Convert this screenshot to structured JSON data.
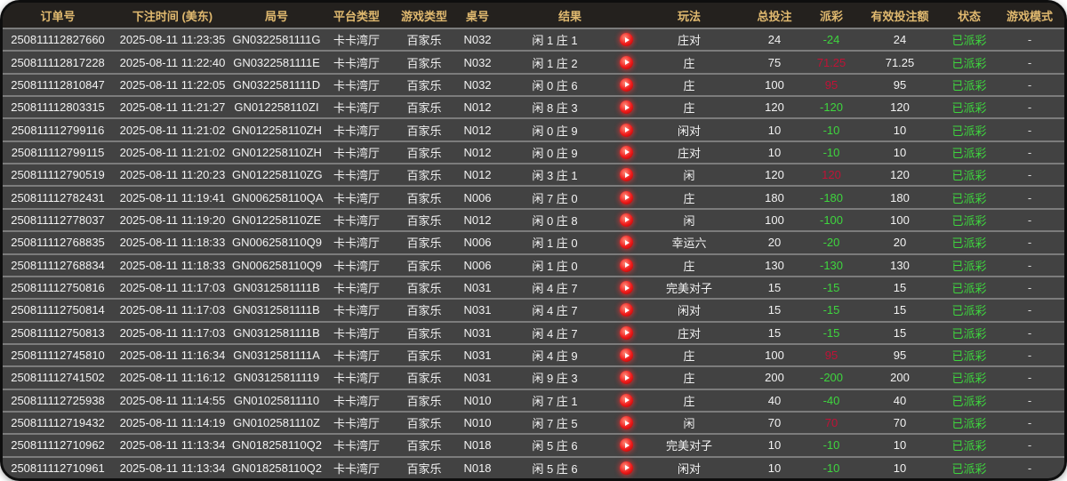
{
  "colors": {
    "header_text": "#e0b96f",
    "win_payout_red": "#c01236",
    "loss_payout_green": "#3ed63e",
    "status_green": "#3ed63e",
    "row_background": "#424242",
    "header_background": "#24211e"
  },
  "icons": {
    "replay": "play-icon"
  },
  "table": {
    "columns": [
      "订单号",
      "下注时间 (美东)",
      "局号",
      "平台类型",
      "游戏类型",
      "桌号",
      "结果",
      "玩法",
      "总投注",
      "派彩",
      "有效投注额",
      "状态",
      "游戏模式"
    ],
    "rows": [
      {
        "order_id": "250811112827660",
        "bet_time": "2025-08-11 11:23:35",
        "round_id": "GN0322581111G",
        "platform": "卡卡湾厅",
        "game_type": "百家乐",
        "table_no": "N032",
        "result": "闲 1 庄 1",
        "play_type": "庄对",
        "total_bet": "24",
        "payout": "-24",
        "valid_bet": "24",
        "status": "已派彩",
        "game_mode": "-"
      },
      {
        "order_id": "250811112817228",
        "bet_time": "2025-08-11 11:22:40",
        "round_id": "GN0322581111E",
        "platform": "卡卡湾厅",
        "game_type": "百家乐",
        "table_no": "N032",
        "result": "闲 1 庄 2",
        "play_type": "庄",
        "total_bet": "75",
        "payout": "71.25",
        "valid_bet": "71.25",
        "status": "已派彩",
        "game_mode": "-"
      },
      {
        "order_id": "250811112810847",
        "bet_time": "2025-08-11 11:22:05",
        "round_id": "GN0322581111D",
        "platform": "卡卡湾厅",
        "game_type": "百家乐",
        "table_no": "N032",
        "result": "闲 0 庄 6",
        "play_type": "庄",
        "total_bet": "100",
        "payout": "95",
        "valid_bet": "95",
        "status": "已派彩",
        "game_mode": "-"
      },
      {
        "order_id": "250811112803315",
        "bet_time": "2025-08-11 11:21:27",
        "round_id": "GN012258110ZI",
        "platform": "卡卡湾厅",
        "game_type": "百家乐",
        "table_no": "N012",
        "result": "闲 8 庄 3",
        "play_type": "庄",
        "total_bet": "120",
        "payout": "-120",
        "valid_bet": "120",
        "status": "已派彩",
        "game_mode": "-"
      },
      {
        "order_id": "250811112799116",
        "bet_time": "2025-08-11 11:21:02",
        "round_id": "GN012258110ZH",
        "platform": "卡卡湾厅",
        "game_type": "百家乐",
        "table_no": "N012",
        "result": "闲 0 庄 9",
        "play_type": "闲对",
        "total_bet": "10",
        "payout": "-10",
        "valid_bet": "10",
        "status": "已派彩",
        "game_mode": "-"
      },
      {
        "order_id": "250811112799115",
        "bet_time": "2025-08-11 11:21:02",
        "round_id": "GN012258110ZH",
        "platform": "卡卡湾厅",
        "game_type": "百家乐",
        "table_no": "N012",
        "result": "闲 0 庄 9",
        "play_type": "庄对",
        "total_bet": "10",
        "payout": "-10",
        "valid_bet": "10",
        "status": "已派彩",
        "game_mode": "-"
      },
      {
        "order_id": "250811112790519",
        "bet_time": "2025-08-11 11:20:23",
        "round_id": "GN012258110ZG",
        "platform": "卡卡湾厅",
        "game_type": "百家乐",
        "table_no": "N012",
        "result": "闲 3 庄 1",
        "play_type": "闲",
        "total_bet": "120",
        "payout": "120",
        "valid_bet": "120",
        "status": "已派彩",
        "game_mode": "-"
      },
      {
        "order_id": "250811112782431",
        "bet_time": "2025-08-11 11:19:41",
        "round_id": "GN006258110QA",
        "platform": "卡卡湾厅",
        "game_type": "百家乐",
        "table_no": "N006",
        "result": "闲 7 庄 0",
        "play_type": "庄",
        "total_bet": "180",
        "payout": "-180",
        "valid_bet": "180",
        "status": "已派彩",
        "game_mode": "-"
      },
      {
        "order_id": "250811112778037",
        "bet_time": "2025-08-11 11:19:20",
        "round_id": "GN012258110ZE",
        "platform": "卡卡湾厅",
        "game_type": "百家乐",
        "table_no": "N012",
        "result": "闲 0 庄 8",
        "play_type": "闲",
        "total_bet": "100",
        "payout": "-100",
        "valid_bet": "100",
        "status": "已派彩",
        "game_mode": "-"
      },
      {
        "order_id": "250811112768835",
        "bet_time": "2025-08-11 11:18:33",
        "round_id": "GN006258110Q9",
        "platform": "卡卡湾厅",
        "game_type": "百家乐",
        "table_no": "N006",
        "result": "闲 1 庄 0",
        "play_type": "幸运六",
        "total_bet": "20",
        "payout": "-20",
        "valid_bet": "20",
        "status": "已派彩",
        "game_mode": "-"
      },
      {
        "order_id": "250811112768834",
        "bet_time": "2025-08-11 11:18:33",
        "round_id": "GN006258110Q9",
        "platform": "卡卡湾厅",
        "game_type": "百家乐",
        "table_no": "N006",
        "result": "闲 1 庄 0",
        "play_type": "庄",
        "total_bet": "130",
        "payout": "-130",
        "valid_bet": "130",
        "status": "已派彩",
        "game_mode": "-"
      },
      {
        "order_id": "250811112750816",
        "bet_time": "2025-08-11 11:17:03",
        "round_id": "GN0312581111B",
        "platform": "卡卡湾厅",
        "game_type": "百家乐",
        "table_no": "N031",
        "result": "闲 4 庄 7",
        "play_type": "完美对子",
        "total_bet": "15",
        "payout": "-15",
        "valid_bet": "15",
        "status": "已派彩",
        "game_mode": "-"
      },
      {
        "order_id": "250811112750814",
        "bet_time": "2025-08-11 11:17:03",
        "round_id": "GN0312581111B",
        "platform": "卡卡湾厅",
        "game_type": "百家乐",
        "table_no": "N031",
        "result": "闲 4 庄 7",
        "play_type": "闲对",
        "total_bet": "15",
        "payout": "-15",
        "valid_bet": "15",
        "status": "已派彩",
        "game_mode": "-"
      },
      {
        "order_id": "250811112750813",
        "bet_time": "2025-08-11 11:17:03",
        "round_id": "GN0312581111B",
        "platform": "卡卡湾厅",
        "game_type": "百家乐",
        "table_no": "N031",
        "result": "闲 4 庄 7",
        "play_type": "庄对",
        "total_bet": "15",
        "payout": "-15",
        "valid_bet": "15",
        "status": "已派彩",
        "game_mode": "-"
      },
      {
        "order_id": "250811112745810",
        "bet_time": "2025-08-11 11:16:34",
        "round_id": "GN0312581111A",
        "platform": "卡卡湾厅",
        "game_type": "百家乐",
        "table_no": "N031",
        "result": "闲 4 庄 9",
        "play_type": "庄",
        "total_bet": "100",
        "payout": "95",
        "valid_bet": "95",
        "status": "已派彩",
        "game_mode": "-"
      },
      {
        "order_id": "250811112741502",
        "bet_time": "2025-08-11 11:16:12",
        "round_id": "GN03125811119",
        "platform": "卡卡湾厅",
        "game_type": "百家乐",
        "table_no": "N031",
        "result": "闲 9 庄 3",
        "play_type": "庄",
        "total_bet": "200",
        "payout": "-200",
        "valid_bet": "200",
        "status": "已派彩",
        "game_mode": "-"
      },
      {
        "order_id": "250811112725938",
        "bet_time": "2025-08-11 11:14:55",
        "round_id": "GN01025811110",
        "platform": "卡卡湾厅",
        "game_type": "百家乐",
        "table_no": "N010",
        "result": "闲 7 庄 1",
        "play_type": "庄",
        "total_bet": "40",
        "payout": "-40",
        "valid_bet": "40",
        "status": "已派彩",
        "game_mode": "-"
      },
      {
        "order_id": "250811112719432",
        "bet_time": "2025-08-11 11:14:19",
        "round_id": "GN0102581110Z",
        "platform": "卡卡湾厅",
        "game_type": "百家乐",
        "table_no": "N010",
        "result": "闲 7 庄 5",
        "play_type": "闲",
        "total_bet": "70",
        "payout": "70",
        "valid_bet": "70",
        "status": "已派彩",
        "game_mode": "-"
      },
      {
        "order_id": "250811112710962",
        "bet_time": "2025-08-11 11:13:34",
        "round_id": "GN018258110Q2",
        "platform": "卡卡湾厅",
        "game_type": "百家乐",
        "table_no": "N018",
        "result": "闲 5 庄 6",
        "play_type": "完美对子",
        "total_bet": "10",
        "payout": "-10",
        "valid_bet": "10",
        "status": "已派彩",
        "game_mode": "-"
      },
      {
        "order_id": "250811112710961",
        "bet_time": "2025-08-11 11:13:34",
        "round_id": "GN018258110Q2",
        "platform": "卡卡湾厅",
        "game_type": "百家乐",
        "table_no": "N018",
        "result": "闲 5 庄 6",
        "play_type": "闲对",
        "total_bet": "10",
        "payout": "-10",
        "valid_bet": "10",
        "status": "已派彩",
        "game_mode": "-"
      }
    ]
  }
}
